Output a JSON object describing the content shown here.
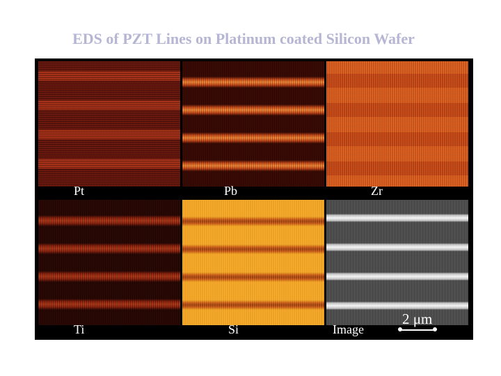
{
  "slide": {
    "title": "EDS of PZT Lines on Platinum coated Silicon Wafer",
    "title_color": "#b6b6d4"
  },
  "panels": [
    {
      "label": "Pt"
    },
    {
      "label": "Pb"
    },
    {
      "label": "Zr"
    },
    {
      "label": "Ti"
    },
    {
      "label": "Si"
    },
    {
      "label": "Image"
    }
  ],
  "scale_bar": {
    "label": "2 μm"
  }
}
